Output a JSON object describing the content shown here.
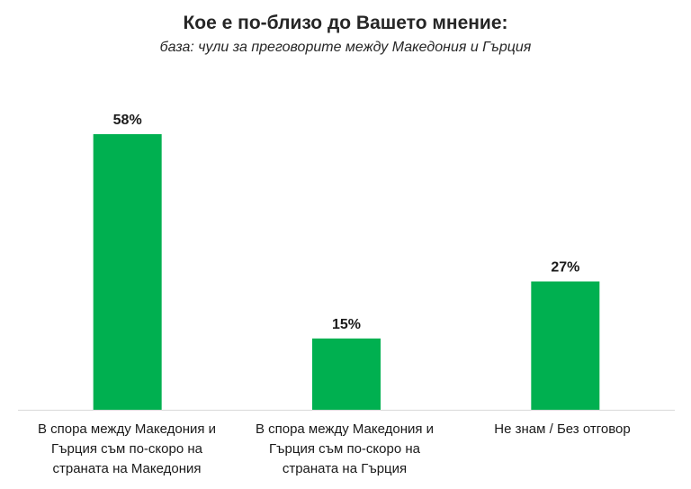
{
  "chart_data": {
    "type": "bar",
    "title": "Кое е по-близо до Вашето мнение:",
    "subtitle": "база: чули за преговорите между Македония и Гърция",
    "categories": [
      "В спора между Македония и Гърция съм по-скоро на страната на Македония",
      "В спора между Македония и Гърция съм по-скоро на страната на Гърция",
      "Не знам / Без отговор"
    ],
    "values": [
      58,
      15,
      27
    ],
    "value_labels": [
      "58%",
      "15%",
      "27%"
    ],
    "ylim": [
      0,
      65
    ],
    "grid": false,
    "bar_color": "#00b050",
    "axis_color": "#d9d9d9"
  }
}
